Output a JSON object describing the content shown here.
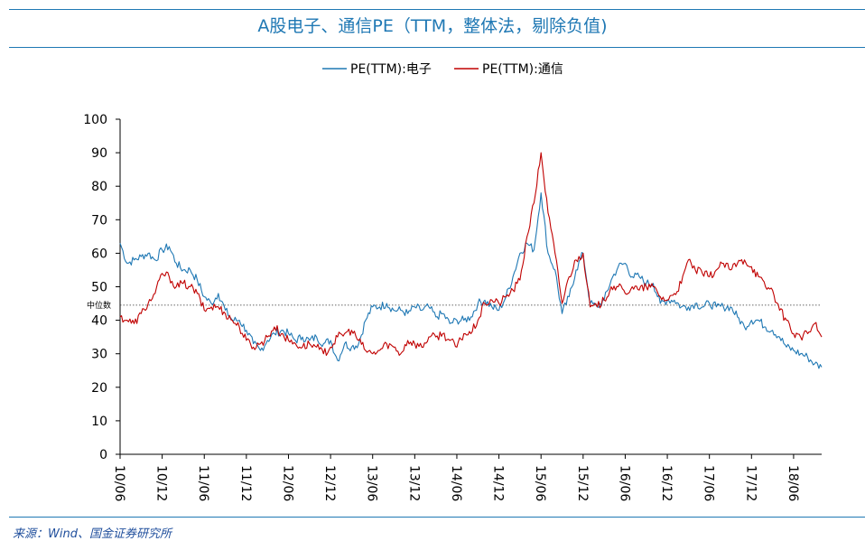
{
  "header": {
    "title": "A股电子、通信PE（TTM，整体法，剔除负值)"
  },
  "footer": {
    "source": "来源：Wind、国金证券研究所"
  },
  "colors": {
    "accent": "#1f78b4",
    "series_electronics": "#1f78b4",
    "series_telecom": "#c00000"
  },
  "chart_data": {
    "type": "line",
    "title": "A股电子、通信PE（TTM，整体法，剔除负值)",
    "xlabel": "",
    "ylabel": "",
    "ylim": [
      0,
      100
    ],
    "yticks": [
      0,
      10,
      20,
      30,
      40,
      50,
      60,
      70,
      80,
      90,
      100
    ],
    "xticks": [
      "10/06",
      "10/12",
      "11/06",
      "11/12",
      "12/06",
      "12/12",
      "13/06",
      "13/12",
      "14/06",
      "14/12",
      "15/06",
      "15/12",
      "16/06",
      "16/12",
      "17/06",
      "17/12",
      "18/06"
    ],
    "x_unit": "months since 2010-06",
    "x_range": [
      0,
      100
    ],
    "grid": false,
    "legend_position": "top-center",
    "reference_line": {
      "label": "中位数",
      "value": 44.5,
      "style": "dotted"
    },
    "series": [
      {
        "name": "PE(TTM):电子",
        "color": "#1f78b4",
        "x": [
          0,
          1,
          2,
          3,
          4,
          5,
          6,
          7,
          8,
          9,
          10,
          11,
          12,
          13,
          14,
          15,
          16,
          17,
          18,
          19,
          20,
          21,
          22,
          23,
          24,
          25,
          26,
          27,
          28,
          29,
          30,
          31,
          32,
          33,
          34,
          35,
          36,
          37,
          38,
          39,
          40,
          41,
          42,
          43,
          44,
          45,
          46,
          47,
          48,
          49,
          50,
          51,
          52,
          53,
          54,
          55,
          56,
          57,
          58,
          59,
          60,
          61,
          62,
          63,
          64,
          65,
          66,
          67,
          68,
          69,
          70,
          71,
          72,
          73,
          74,
          75,
          76,
          77,
          78,
          79,
          80,
          81,
          82,
          83,
          84,
          85,
          86,
          87,
          88,
          89,
          90,
          91,
          92,
          93,
          94,
          95,
          96,
          97,
          98,
          99,
          100
        ],
        "values": [
          63,
          57,
          58,
          59,
          60,
          58,
          61,
          62,
          57,
          55,
          55,
          52,
          47,
          45,
          48,
          43,
          40,
          40,
          37,
          33,
          31,
          34,
          36,
          37,
          36,
          34,
          35,
          34,
          35,
          33,
          34,
          28,
          33,
          32,
          33,
          40,
          44,
          44,
          45,
          43,
          43,
          42,
          44,
          43,
          44,
          41,
          42,
          39,
          40,
          40,
          41,
          45,
          46,
          44,
          43,
          47,
          53,
          60,
          63,
          61,
          78,
          60,
          55,
          42,
          47,
          55,
          60,
          45,
          44,
          46,
          52,
          56,
          57,
          53,
          53,
          51,
          51,
          45,
          46,
          46,
          44,
          44,
          45,
          44,
          45,
          44,
          44,
          44,
          41,
          38,
          40,
          40,
          38,
          37,
          35,
          32,
          31,
          30,
          29,
          27,
          26
        ]
      },
      {
        "name": "PE(TTM):通信",
        "color": "#c00000",
        "x": [
          0,
          1,
          2,
          3,
          4,
          5,
          6,
          7,
          8,
          9,
          10,
          11,
          12,
          13,
          14,
          15,
          16,
          17,
          18,
          19,
          20,
          21,
          22,
          23,
          24,
          25,
          26,
          27,
          28,
          29,
          30,
          31,
          32,
          33,
          34,
          35,
          36,
          37,
          38,
          39,
          40,
          41,
          42,
          43,
          44,
          45,
          46,
          47,
          48,
          49,
          50,
          51,
          52,
          53,
          54,
          55,
          56,
          57,
          58,
          59,
          60,
          61,
          62,
          63,
          64,
          65,
          66,
          67,
          68,
          69,
          70,
          71,
          72,
          73,
          74,
          75,
          76,
          77,
          78,
          79,
          80,
          81,
          82,
          83,
          84,
          85,
          86,
          87,
          88,
          89,
          90,
          91,
          92,
          93,
          94,
          95,
          96,
          97,
          98,
          99,
          100
        ],
        "values": [
          41,
          40,
          39,
          42,
          45,
          48,
          54,
          53,
          50,
          51,
          50,
          48,
          43,
          44,
          44,
          42,
          40,
          38,
          34,
          32,
          33,
          35,
          38,
          36,
          34,
          33,
          32,
          33,
          32,
          30,
          32,
          35,
          36,
          37,
          34,
          31,
          30,
          31,
          33,
          32,
          30,
          34,
          33,
          32,
          35,
          35,
          36,
          34,
          32,
          36,
          36,
          40,
          45,
          46,
          45,
          47,
          49,
          52,
          65,
          75,
          90,
          72,
          60,
          45,
          53,
          58,
          60,
          44,
          44,
          46,
          50,
          50,
          48,
          50,
          49,
          50,
          50,
          47,
          46,
          48,
          51,
          58,
          55,
          54,
          53,
          55,
          57,
          55,
          57,
          58,
          56,
          53,
          50,
          49,
          43,
          40,
          36,
          35,
          36,
          39,
          35
        ]
      }
    ]
  }
}
